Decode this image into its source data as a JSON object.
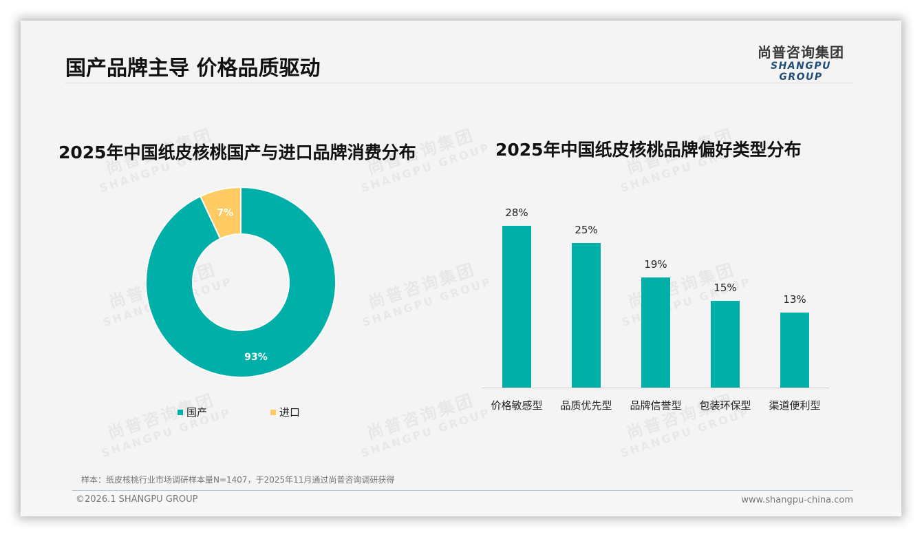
{
  "header": {
    "title": "国产品牌主导 价格品质驱动",
    "logo_cn": "尚普咨询集团",
    "logo_en": "SHANGPU GROUP"
  },
  "watermark": {
    "cn": "尚普咨询集团",
    "en": "SHANGPU GROUP"
  },
  "colors": {
    "teal": "#00b0a8",
    "yellow": "#ffcb62",
    "background": "#f4f4f4",
    "logo_blue": "#1f4e79"
  },
  "chart_data": [
    {
      "type": "pie",
      "variant": "donut",
      "title": "2025年中国纸皮核桃国产与进口品牌消费分布",
      "categories": [
        "国产",
        "进口"
      ],
      "values": [
        93,
        7
      ],
      "labels": [
        "93%",
        "7%"
      ],
      "colors": [
        "#00b0a8",
        "#ffcb62"
      ],
      "legend_position": "bottom"
    },
    {
      "type": "bar",
      "title": "2025年中国纸皮核桃品牌偏好类型分布",
      "categories": [
        "价格敏感型",
        "品质优先型",
        "品牌信誉型",
        "包装环保型",
        "渠道便利型"
      ],
      "values": [
        28,
        25,
        19,
        15,
        13
      ],
      "labels": [
        "28%",
        "25%",
        "19%",
        "15%",
        "13%"
      ],
      "unit": "%",
      "xlabel": "",
      "ylabel": "",
      "grid": false,
      "color": "#00b0a8"
    }
  ],
  "footer": {
    "note": "样本：纸皮核桃行业市场调研样本量N=1407，于2025年11月通过尚普咨询调研获得",
    "copyright": "©2026.1 SHANGPU GROUP",
    "website": "www.shangpu-china.com"
  }
}
